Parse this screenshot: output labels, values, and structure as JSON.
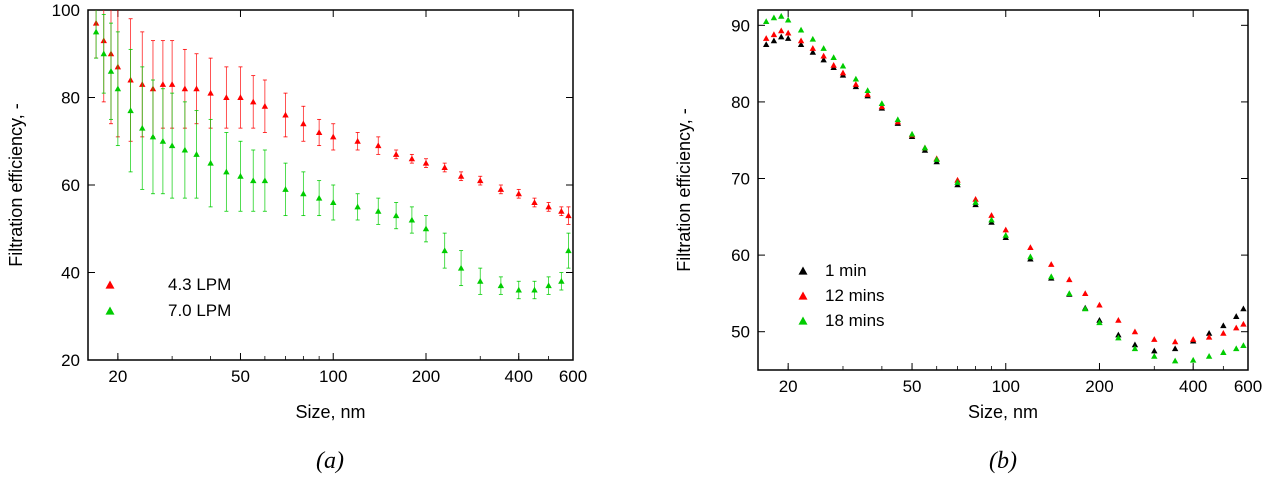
{
  "chart_data": [
    {
      "type": "scatter",
      "caption": "(a)",
      "xlabel": "Size, nm",
      "ylabel": "Filtration efficiency, -",
      "xscale": "log",
      "xlim": [
        16,
        600
      ],
      "ylim": [
        20,
        100
      ],
      "xticks": [
        20,
        50,
        100,
        200,
        400,
        600
      ],
      "yticks": [
        20,
        40,
        60,
        80,
        100
      ],
      "grid": false,
      "legend_position": "bottom-left",
      "error_bars": true,
      "series": [
        {
          "name": "4.3 LPM",
          "color": "#ff0000",
          "x": [
            17,
            18,
            19,
            20,
            22,
            24,
            26,
            28,
            30,
            33,
            36,
            40,
            45,
            50,
            55,
            60,
            70,
            80,
            90,
            100,
            120,
            140,
            160,
            180,
            200,
            230,
            260,
            300,
            350,
            400,
            450,
            500,
            550,
            580
          ],
          "y": [
            97,
            93,
            90,
            87,
            84,
            83,
            82,
            83,
            83,
            82,
            82,
            81,
            80,
            80,
            79,
            78,
            76,
            74,
            72,
            71,
            70,
            69,
            67,
            66,
            65,
            64,
            62,
            61,
            59,
            58,
            56,
            55,
            54,
            53
          ],
          "err": [
            8,
            14,
            16,
            16,
            14,
            12,
            11,
            10,
            10,
            9,
            8,
            8,
            7,
            7,
            6,
            6,
            5,
            4,
            3,
            3,
            2,
            2,
            1,
            1,
            1,
            1,
            1,
            1,
            1,
            1,
            1,
            1,
            1,
            2
          ]
        },
        {
          "name": "7.0 LPM",
          "color": "#00cc00",
          "x": [
            17,
            18,
            19,
            20,
            22,
            24,
            26,
            28,
            30,
            33,
            36,
            40,
            45,
            50,
            55,
            60,
            70,
            80,
            90,
            100,
            120,
            140,
            160,
            180,
            200,
            230,
            260,
            300,
            350,
            400,
            450,
            500,
            550,
            580
          ],
          "y": [
            95,
            90,
            86,
            82,
            77,
            73,
            71,
            70,
            69,
            68,
            67,
            65,
            63,
            62,
            61,
            61,
            59,
            58,
            57,
            56,
            55,
            54,
            53,
            52,
            50,
            45,
            41,
            38,
            37,
            36,
            36,
            37,
            38,
            45
          ],
          "err": [
            6,
            9,
            11,
            13,
            14,
            14,
            13,
            12,
            12,
            11,
            10,
            10,
            9,
            8,
            7,
            7,
            6,
            5,
            4,
            4,
            3,
            3,
            3,
            3,
            3,
            4,
            4,
            3,
            2,
            2,
            2,
            2,
            2,
            4
          ]
        }
      ]
    },
    {
      "type": "scatter",
      "caption": "(b)",
      "xlabel": "Size, nm",
      "ylabel": "Filtration efficiency, -",
      "xscale": "log",
      "xlim": [
        16,
        600
      ],
      "ylim": [
        45,
        92
      ],
      "xticks": [
        20,
        50,
        100,
        200,
        400,
        600
      ],
      "yticks": [
        50,
        60,
        70,
        80,
        90
      ],
      "grid": false,
      "legend_position": "bottom-left",
      "error_bars": false,
      "series": [
        {
          "name": "1 min",
          "color": "#000000",
          "x": [
            17,
            18,
            19,
            20,
            22,
            24,
            26,
            28,
            30,
            33,
            36,
            40,
            45,
            50,
            55,
            60,
            70,
            80,
            90,
            100,
            120,
            140,
            160,
            180,
            200,
            230,
            260,
            300,
            350,
            400,
            450,
            500,
            550,
            580
          ],
          "y": [
            87.5,
            88,
            88.5,
            88.3,
            87.5,
            86.5,
            85.5,
            84.5,
            83.5,
            82,
            80.8,
            79.2,
            77.2,
            75.5,
            73.7,
            72.2,
            69.2,
            66.6,
            64.3,
            62.3,
            59.5,
            57,
            54.9,
            53.1,
            51.5,
            49.6,
            48.3,
            47.5,
            47.8,
            48.8,
            49.8,
            50.8,
            52,
            53
          ]
        },
        {
          "name": "12 mins",
          "color": "#ff0000",
          "x": [
            17,
            18,
            19,
            20,
            22,
            24,
            26,
            28,
            30,
            33,
            36,
            40,
            45,
            50,
            55,
            60,
            70,
            80,
            90,
            100,
            120,
            140,
            160,
            180,
            200,
            230,
            260,
            300,
            350,
            400,
            450,
            500,
            550,
            580
          ],
          "y": [
            88.3,
            88.8,
            89.3,
            89,
            88,
            87,
            86,
            84.8,
            83.8,
            82.3,
            81,
            79.4,
            77.4,
            75.7,
            74,
            72.6,
            69.8,
            67.3,
            65.2,
            63.3,
            61,
            58.8,
            56.8,
            55,
            53.5,
            51.5,
            50,
            49,
            48.7,
            49,
            49.3,
            49.8,
            50.5,
            51
          ]
        },
        {
          "name": "18 mins",
          "color": "#00cc00",
          "x": [
            17,
            18,
            19,
            20,
            22,
            24,
            26,
            28,
            30,
            33,
            36,
            40,
            45,
            50,
            55,
            60,
            70,
            80,
            90,
            100,
            120,
            140,
            160,
            180,
            200,
            230,
            260,
            300,
            350,
            400,
            450,
            500,
            550,
            580
          ],
          "y": [
            90.5,
            91,
            91.2,
            90.7,
            89.4,
            88.2,
            87,
            85.8,
            84.7,
            83,
            81.5,
            79.8,
            77.7,
            75.8,
            74,
            72.5,
            69.5,
            66.9,
            64.6,
            62.6,
            59.8,
            57.2,
            55,
            53,
            51.2,
            49.2,
            47.8,
            46.8,
            46.2,
            46.3,
            46.8,
            47.3,
            47.8,
            48.2
          ]
        }
      ]
    }
  ]
}
